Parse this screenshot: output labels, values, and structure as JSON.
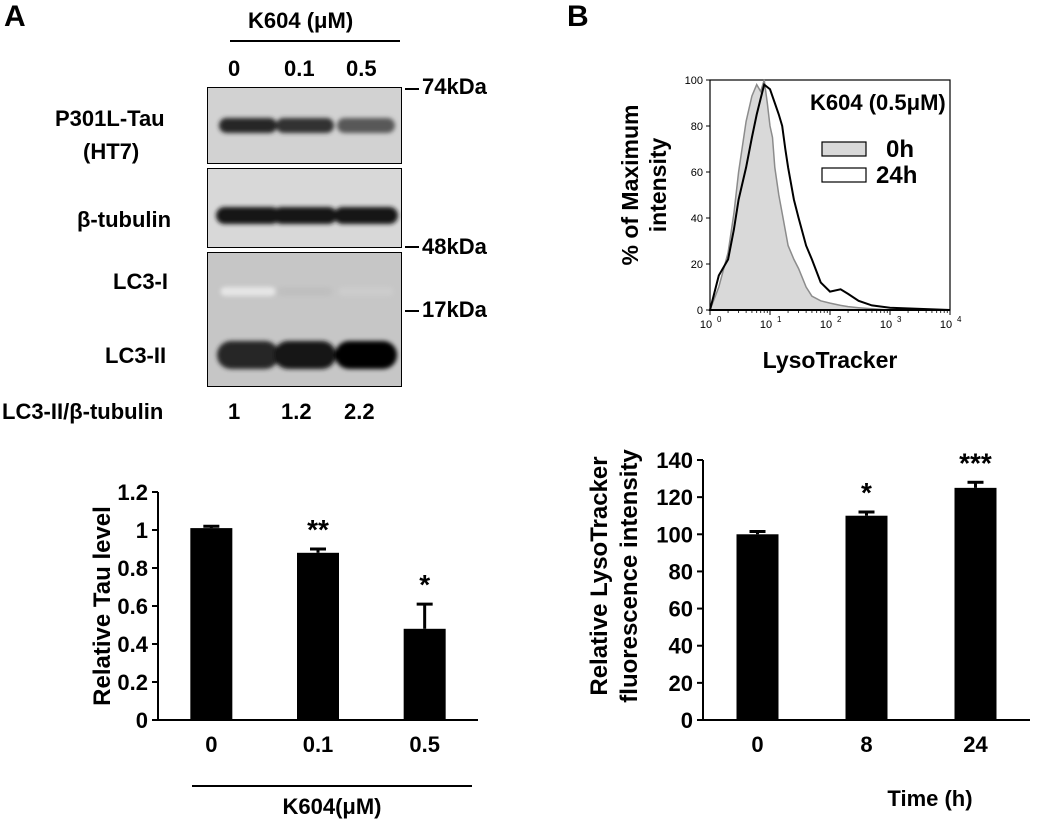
{
  "panel_a": {
    "letter": "A",
    "blot": {
      "treatment_header": "K604 (μM)",
      "lanes": [
        "0",
        "0.1",
        "0.5"
      ],
      "rows": [
        {
          "label_line1": "P301L-Tau",
          "label_line2": "(HT7)"
        },
        {
          "label_line1": "β-tubulin",
          "label_line2": ""
        },
        {
          "label_line1": "LC3-I",
          "label_line2": ""
        },
        {
          "label_line1": "LC3-II",
          "label_line2": ""
        }
      ],
      "markers": [
        "74kDa",
        "48kDa",
        "17kDa"
      ],
      "ratio_label": "LC3-II/β-tubulin",
      "ratio_values": [
        "1",
        "1.2",
        "2.2"
      ],
      "band_intensities": {
        "tau": [
          0.85,
          0.8,
          0.65
        ],
        "tubulin": [
          0.9,
          0.9,
          0.9
        ],
        "lc3_i": [
          0.1,
          0.25,
          0.2
        ],
        "lc3_ii": [
          0.85,
          0.9,
          1.0
        ]
      }
    }
  },
  "panel_b": {
    "letter": "B",
    "histogram": {
      "title": "K604 (0.5μM)",
      "ylabel_line1": "% of Maximum",
      "ylabel_line2": "intensity",
      "xlabel": "LysoTracker",
      "yticks": [
        "0",
        "20",
        "40",
        "60",
        "80",
        "100"
      ],
      "xticks": [
        "10",
        "10",
        "10",
        "10",
        "10"
      ],
      "xtick_exponents": [
        "0",
        "1",
        "2",
        "3",
        "4"
      ],
      "legend": [
        {
          "name": "0h",
          "fill": "#d9d9d9"
        },
        {
          "name": "24h",
          "fill": "#ffffff"
        }
      ]
    }
  },
  "chart_data": [
    {
      "type": "bar",
      "categories": [
        "0",
        "0.1",
        "0.5"
      ],
      "values": [
        1.01,
        0.88,
        0.48
      ],
      "errors": [
        0.01,
        0.02,
        0.13
      ],
      "significance": [
        "",
        "**",
        "*"
      ],
      "ylabel": "Relative Tau level",
      "xlabel": "K604(μM)",
      "ylim": [
        0,
        1.2
      ],
      "yticks": [
        "0",
        "0.2",
        "0.4",
        "0.6",
        "0.8",
        "1",
        "1.2"
      ],
      "bar_color": "#000000"
    },
    {
      "type": "bar",
      "categories": [
        "0",
        "8",
        "24"
      ],
      "values": [
        100,
        110,
        125
      ],
      "errors": [
        1.5,
        2,
        3
      ],
      "significance": [
        "",
        "*",
        "***"
      ],
      "ylabel_line1": "Relative LysoTracker",
      "ylabel_line2": "fluorescence intensity",
      "xlabel": "Time (h)",
      "ylim": [
        0,
        140
      ],
      "yticks": [
        "0",
        "20",
        "40",
        "60",
        "80",
        "100",
        "120",
        "140"
      ],
      "bar_color": "#000000"
    },
    {
      "type": "area",
      "x_scale": "log",
      "xlim": [
        1,
        10000
      ],
      "ylim": [
        0,
        100
      ],
      "series": [
        {
          "name": "0h",
          "fill": "#d9d9d9",
          "stroke": "#8c8c8c",
          "x": [
            1,
            1.4,
            2,
            2.5,
            3,
            4,
            5,
            6,
            7,
            8,
            9,
            10,
            11,
            12,
            14,
            16,
            20,
            25,
            30,
            40,
            50,
            70,
            100,
            150,
            200,
            300,
            500,
            1000,
            10000
          ],
          "y": [
            0,
            10,
            25,
            42,
            60,
            82,
            93,
            98,
            95,
            100,
            90,
            80,
            75,
            62,
            50,
            42,
            28,
            22,
            18,
            10,
            6,
            4,
            3,
            2,
            1.5,
            1,
            0.5,
            0,
            0
          ]
        },
        {
          "name": "24h",
          "fill": "none",
          "stroke": "#000000",
          "x": [
            1,
            1.4,
            2,
            2.5,
            3,
            4,
            5,
            6,
            7,
            8,
            10,
            12,
            14,
            16,
            18,
            20,
            25,
            30,
            40,
            50,
            70,
            100,
            150,
            200,
            300,
            500,
            1000,
            10000
          ],
          "y": [
            0,
            15,
            22,
            35,
            48,
            62,
            75,
            85,
            92,
            98,
            96,
            90,
            85,
            80,
            70,
            62,
            48,
            40,
            28,
            22,
            12,
            8,
            9,
            7,
            4,
            2,
            1,
            0
          ]
        }
      ]
    }
  ]
}
